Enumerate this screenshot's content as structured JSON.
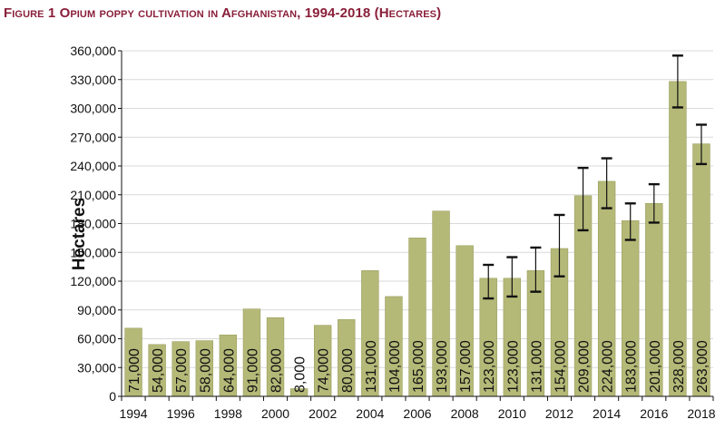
{
  "chart_data": {
    "type": "bar",
    "title": "Figure 1 Opium poppy cultivation in Afghanistan, 1994-2018 (Hectares)",
    "ylabel": "Hectares",
    "xlabel": "",
    "ylim": [
      0,
      360000
    ],
    "yticks": [
      0,
      30000,
      60000,
      90000,
      120000,
      150000,
      180000,
      210000,
      240000,
      270000,
      300000,
      330000,
      360000
    ],
    "ytick_labels": [
      "0",
      "30,000",
      "60,000",
      "90,000",
      "120,000",
      "150,000",
      "180,000",
      "210,000",
      "240,000",
      "270,000",
      "300,000",
      "330,000",
      "360,000"
    ],
    "xtick_labels": [
      "1994",
      "1996",
      "1998",
      "2000",
      "2002",
      "2004",
      "2006",
      "2008",
      "2010",
      "2012",
      "2014",
      "2016",
      "2018"
    ],
    "categories": [
      "1994",
      "1995",
      "1996",
      "1997",
      "1998",
      "1999",
      "2000",
      "2001",
      "2002",
      "2003",
      "2004",
      "2005",
      "2006",
      "2007",
      "2008",
      "2009",
      "2010",
      "2011",
      "2012",
      "2013",
      "2014",
      "2015",
      "2016",
      "2017",
      "2018"
    ],
    "values": [
      71000,
      54000,
      57000,
      58000,
      64000,
      91000,
      82000,
      8000,
      74000,
      80000,
      131000,
      104000,
      165000,
      193000,
      157000,
      123000,
      123000,
      131000,
      154000,
      209000,
      224000,
      183000,
      201000,
      328000,
      263000
    ],
    "value_labels": [
      "71,000",
      "54,000",
      "57,000",
      "58,000",
      "64,000",
      "91,000",
      "82,000",
      "8,000",
      "74,000",
      "80,000",
      "131,000",
      "104,000",
      "165,000",
      "193,000",
      "157,000",
      "123,000",
      "123,000",
      "131,000",
      "154,000",
      "209,000",
      "224,000",
      "183,000",
      "201,000",
      "328,000",
      "263,000"
    ],
    "error_bars": [
      {
        "year": "2009",
        "low": 102000,
        "high": 137000
      },
      {
        "year": "2010",
        "low": 104000,
        "high": 145000
      },
      {
        "year": "2011",
        "low": 109000,
        "high": 155000
      },
      {
        "year": "2012",
        "low": 125000,
        "high": 189000
      },
      {
        "year": "2013",
        "low": 173000,
        "high": 238000
      },
      {
        "year": "2014",
        "low": 196000,
        "high": 248000
      },
      {
        "year": "2015",
        "low": 163000,
        "high": 201000
      },
      {
        "year": "2016",
        "low": 181000,
        "high": 221000
      },
      {
        "year": "2017",
        "low": 301000,
        "high": 355000
      },
      {
        "year": "2018",
        "low": 242000,
        "high": 283000
      }
    ],
    "grid": true,
    "legend": "none",
    "colors": {
      "bar": "#b5b978",
      "bar_edge": "#9a9e5c",
      "grid": "#d9d9d9",
      "title": "#8a1f3a"
    }
  }
}
